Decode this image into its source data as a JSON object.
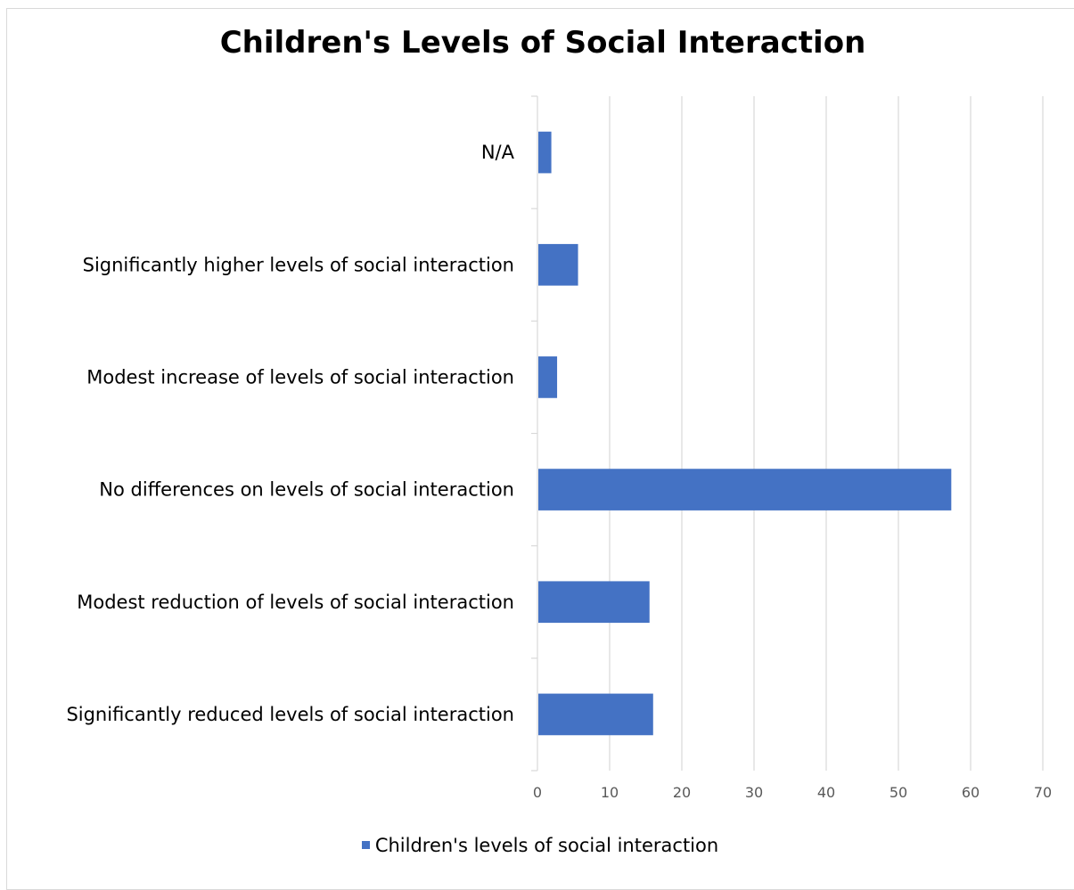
{
  "chart_data": {
    "type": "bar",
    "orientation": "horizontal",
    "title": "Children's Levels of Social Interaction",
    "categories": [
      "N/A",
      "Significantly higher levels of social interaction",
      "Modest increase of levels of social interaction",
      "No differences on levels of social interaction",
      "Modest reduction of levels of social interaction",
      "Significantly reduced levels of social interaction"
    ],
    "series": [
      {
        "name": "Children's levels of social interaction",
        "values": [
          1.8,
          5.5,
          2.6,
          57.2,
          15.4,
          15.9
        ],
        "color": "#4472c4"
      }
    ],
    "xlim": [
      0,
      70
    ],
    "xticks": [
      "0",
      "10",
      "20",
      "30",
      "40",
      "50",
      "60",
      "70"
    ],
    "xlabel": "",
    "ylabel": "",
    "grid": true,
    "legend_position": "bottom"
  }
}
